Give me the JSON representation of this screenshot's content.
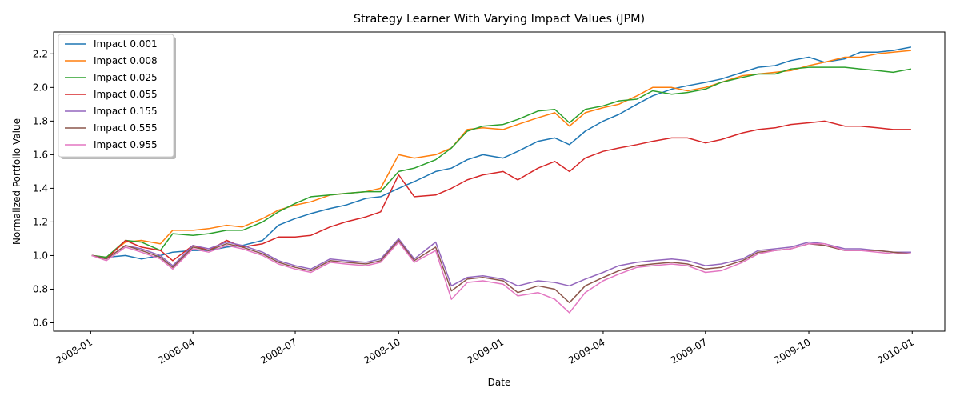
{
  "chart_data": {
    "type": "line",
    "title": "Strategy Learner With Varying Impact Values (JPM)",
    "xlabel": "Date",
    "ylabel": "Normalized Portfolio Value",
    "xlim": [
      "2007-11-29",
      "2010-01-30"
    ],
    "ylim": [
      0.55,
      2.33
    ],
    "x_ticks": [
      "2008-01",
      "2008-04",
      "2008-07",
      "2008-10",
      "2009-01",
      "2009-04",
      "2009-07",
      "2009-10",
      "2010-01"
    ],
    "y_ticks": [
      "0.6",
      "0.8",
      "1.0",
      "1.2",
      "1.4",
      "1.6",
      "1.8",
      "2.0",
      "2.2"
    ],
    "grid": false,
    "legend_position": "upper-left",
    "x": [
      "2008-01-02",
      "2008-01-15",
      "2008-02-01",
      "2008-02-15",
      "2008-03-03",
      "2008-03-14",
      "2008-04-01",
      "2008-04-15",
      "2008-05-01",
      "2008-05-15",
      "2008-06-02",
      "2008-06-16",
      "2008-07-01",
      "2008-07-15",
      "2008-08-01",
      "2008-08-15",
      "2008-09-02",
      "2008-09-15",
      "2008-10-01",
      "2008-10-15",
      "2008-11-03",
      "2008-11-17",
      "2008-12-01",
      "2008-12-15",
      "2009-01-02",
      "2009-01-15",
      "2009-02-02",
      "2009-02-17",
      "2009-03-02",
      "2009-03-16",
      "2009-04-01",
      "2009-04-15",
      "2009-05-01",
      "2009-05-15",
      "2009-06-01",
      "2009-06-15",
      "2009-07-01",
      "2009-07-15",
      "2009-08-03",
      "2009-08-17",
      "2009-09-01",
      "2009-09-15",
      "2009-10-01",
      "2009-10-15",
      "2009-11-02",
      "2009-11-16",
      "2009-12-01",
      "2009-12-15",
      "2009-12-31"
    ],
    "series": [
      {
        "name": "Impact 0.001",
        "color": "#1f77b4",
        "values": [
          1.0,
          0.99,
          1.0,
          0.98,
          1.0,
          1.02,
          1.03,
          1.03,
          1.05,
          1.06,
          1.09,
          1.18,
          1.22,
          1.25,
          1.28,
          1.3,
          1.34,
          1.35,
          1.4,
          1.44,
          1.5,
          1.52,
          1.57,
          1.6,
          1.58,
          1.62,
          1.68,
          1.7,
          1.66,
          1.74,
          1.8,
          1.84,
          1.9,
          1.95,
          1.99,
          2.01,
          2.03,
          2.05,
          2.09,
          2.12,
          2.13,
          2.16,
          2.18,
          2.15,
          2.17,
          2.21,
          2.21,
          2.22,
          2.24
        ]
      },
      {
        "name": "Impact 0.008",
        "color": "#ff7f0e",
        "values": [
          1.0,
          0.99,
          1.08,
          1.09,
          1.07,
          1.15,
          1.15,
          1.16,
          1.18,
          1.17,
          1.22,
          1.27,
          1.3,
          1.32,
          1.36,
          1.37,
          1.38,
          1.4,
          1.6,
          1.58,
          1.6,
          1.64,
          1.75,
          1.76,
          1.75,
          1.78,
          1.82,
          1.85,
          1.77,
          1.85,
          1.88,
          1.9,
          1.95,
          2.0,
          2.0,
          1.98,
          2.0,
          2.03,
          2.07,
          2.08,
          2.09,
          2.1,
          2.13,
          2.15,
          2.18,
          2.18,
          2.2,
          2.21,
          2.22
        ]
      },
      {
        "name": "Impact 0.025",
        "color": "#2ca02c",
        "values": [
          1.0,
          0.99,
          1.09,
          1.08,
          1.03,
          1.13,
          1.12,
          1.13,
          1.15,
          1.15,
          1.2,
          1.26,
          1.31,
          1.35,
          1.36,
          1.37,
          1.38,
          1.38,
          1.5,
          1.52,
          1.57,
          1.64,
          1.74,
          1.77,
          1.78,
          1.81,
          1.86,
          1.87,
          1.79,
          1.87,
          1.89,
          1.92,
          1.93,
          1.98,
          1.96,
          1.97,
          1.99,
          2.03,
          2.06,
          2.08,
          2.08,
          2.11,
          2.12,
          2.12,
          2.12,
          2.11,
          2.1,
          2.09,
          2.11
        ]
      },
      {
        "name": "Impact 0.055",
        "color": "#d62728",
        "values": [
          1.0,
          0.98,
          1.09,
          1.05,
          1.03,
          0.97,
          1.06,
          1.03,
          1.09,
          1.05,
          1.07,
          1.11,
          1.11,
          1.12,
          1.17,
          1.2,
          1.23,
          1.26,
          1.48,
          1.35,
          1.36,
          1.4,
          1.45,
          1.48,
          1.5,
          1.45,
          1.52,
          1.56,
          1.5,
          1.58,
          1.62,
          1.64,
          1.66,
          1.68,
          1.7,
          1.7,
          1.67,
          1.69,
          1.73,
          1.75,
          1.76,
          1.78,
          1.79,
          1.8,
          1.77,
          1.77,
          1.76,
          1.75,
          1.75
        ]
      },
      {
        "name": "Impact 0.155",
        "color": "#9467bd",
        "values": [
          1.0,
          0.98,
          1.06,
          1.04,
          1.0,
          0.94,
          1.06,
          1.04,
          1.08,
          1.06,
          1.02,
          0.97,
          0.94,
          0.92,
          0.98,
          0.97,
          0.96,
          0.98,
          1.1,
          0.98,
          1.08,
          0.82,
          0.87,
          0.88,
          0.86,
          0.82,
          0.85,
          0.84,
          0.82,
          0.86,
          0.9,
          0.94,
          0.96,
          0.97,
          0.98,
          0.97,
          0.94,
          0.95,
          0.98,
          1.03,
          1.04,
          1.05,
          1.08,
          1.07,
          1.04,
          1.04,
          1.03,
          1.02,
          1.02
        ]
      },
      {
        "name": "Impact 0.555",
        "color": "#8c564b",
        "values": [
          1.0,
          0.98,
          1.06,
          1.03,
          0.99,
          0.93,
          1.05,
          1.03,
          1.07,
          1.05,
          1.01,
          0.96,
          0.93,
          0.91,
          0.97,
          0.96,
          0.95,
          0.97,
          1.09,
          0.97,
          1.05,
          0.79,
          0.86,
          0.87,
          0.85,
          0.78,
          0.82,
          0.8,
          0.72,
          0.82,
          0.87,
          0.91,
          0.94,
          0.95,
          0.96,
          0.95,
          0.92,
          0.93,
          0.97,
          1.02,
          1.03,
          1.04,
          1.07,
          1.06,
          1.03,
          1.03,
          1.03,
          1.02,
          1.01
        ]
      },
      {
        "name": "Impact 0.955",
        "color": "#e377c2",
        "values": [
          1.0,
          0.97,
          1.05,
          1.02,
          0.98,
          0.92,
          1.04,
          1.02,
          1.06,
          1.04,
          1.0,
          0.95,
          0.92,
          0.9,
          0.96,
          0.95,
          0.94,
          0.96,
          1.08,
          0.96,
          1.03,
          0.74,
          0.84,
          0.85,
          0.83,
          0.76,
          0.78,
          0.74,
          0.66,
          0.78,
          0.85,
          0.89,
          0.93,
          0.94,
          0.95,
          0.94,
          0.9,
          0.91,
          0.96,
          1.01,
          1.03,
          1.04,
          1.07,
          1.07,
          1.03,
          1.03,
          1.02,
          1.01,
          1.01
        ]
      }
    ]
  }
}
